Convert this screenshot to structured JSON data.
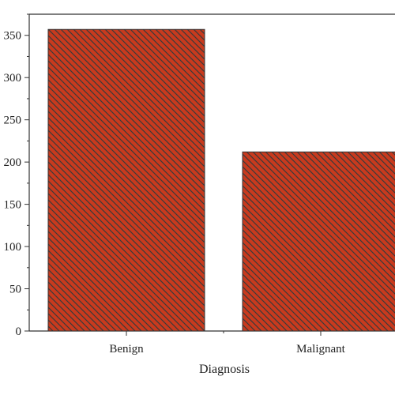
{
  "chart_data": {
    "type": "bar",
    "title": "",
    "xlabel": "Diagnosis",
    "ylabel": "",
    "categories": [
      "Benign",
      "Malignant"
    ],
    "values": [
      357,
      212
    ],
    "ylim": [
      0,
      375
    ],
    "yticks": [
      0,
      50,
      100,
      150,
      200,
      250,
      300,
      350
    ],
    "ytick_labels": [
      "0",
      "50",
      "100",
      "150",
      "200",
      "250",
      "300",
      "350"
    ],
    "grid": false,
    "bar_fill_color": "#c83a1e",
    "bar_hatch_color": "#3a3a3a",
    "bar_hatch": "diagonal"
  }
}
